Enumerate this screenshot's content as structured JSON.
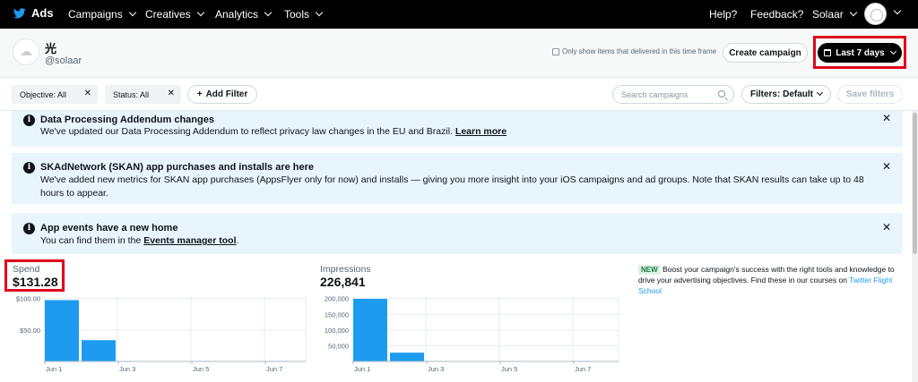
{
  "nav": {
    "brand": "Ads",
    "items": [
      "Campaigns",
      "Creatives",
      "Analytics",
      "Tools"
    ],
    "help": "Help?",
    "feedback": "Feedback?",
    "user": "Solaar"
  },
  "account": {
    "name": "光",
    "handle": "@solaar",
    "only_show_label": "Only show items that delivered in this time frame",
    "create_campaign": "Create campaign",
    "date_range": "Last 7 days"
  },
  "filters": {
    "objective": "Objective: All",
    "status": "Status: All",
    "add_filter": "Add Filter",
    "search_placeholder": "Search campaigns",
    "filters_default": "Filters: Default",
    "save_filters": "Save filters"
  },
  "notices": [
    {
      "title": "Data Processing Addendum changes",
      "body": "We've updated our Data Processing Addendum to reflect privacy law changes in the EU and Brazil.",
      "link": "Learn more"
    },
    {
      "title": "SKAdNetwork (SKAN) app purchases and installs are here",
      "body": "We've added new metrics for SKAN app purchases (AppsFlyer only for now) and installs — giving you more insight into your iOS campaigns and ad groups. Note that SKAN results can take up to 48 hours to appear."
    },
    {
      "title": "App events have a new home",
      "body": "You can find them in the",
      "link": "Events manager tool",
      "body_end": "."
    }
  ],
  "promo": {
    "badge": "NEW",
    "text": "Boost your campaign's success with the right tools and knowledge to drive your advertising objectives. Find these in our courses on",
    "link": "Twitter Flight School"
  },
  "colors": {
    "bar": "#1d9bf0",
    "highlight": "#e0001b",
    "notice_bg": "#e8f5fd"
  },
  "chart_data": [
    {
      "type": "bar",
      "title": "Spend",
      "total": "$131.28",
      "x_ticks": [
        "Jun 1",
        "Jun 3",
        "Jun 5",
        "Jun 7"
      ],
      "categories": [
        "Jun 1",
        "Jun 2",
        "Jun 3",
        "Jun 4",
        "Jun 5",
        "Jun 6",
        "Jun 7"
      ],
      "values": [
        97.5,
        33.8,
        0,
        0,
        0,
        0,
        0
      ],
      "yticks": [
        50,
        100
      ],
      "ytick_labels": [
        "$50.00",
        "$100.00"
      ],
      "ylim": [
        0,
        100
      ],
      "grid": true
    },
    {
      "type": "bar",
      "title": "Impressions",
      "total": "226,841",
      "x_ticks": [
        "Jun 1",
        "Jun 3",
        "Jun 5",
        "Jun 7"
      ],
      "categories": [
        "Jun 1",
        "Jun 2",
        "Jun 3",
        "Jun 4",
        "Jun 5",
        "Jun 6",
        "Jun 7"
      ],
      "values": [
        199000,
        27800,
        0,
        0,
        0,
        0,
        0
      ],
      "yticks": [
        50000,
        100000,
        150000,
        200000
      ],
      "ytick_labels": [
        "50,000",
        "100,000",
        "150,000",
        "200,000"
      ],
      "ylim": [
        0,
        200000
      ],
      "grid": true
    }
  ]
}
